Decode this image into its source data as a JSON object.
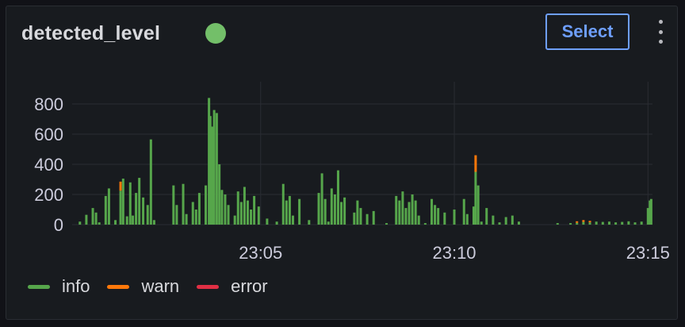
{
  "panel": {
    "title": "detected_level",
    "status_color": "#73bf69",
    "select_label": "Select",
    "menu_icon": "kebab-menu-icon"
  },
  "legend": [
    {
      "label": "info",
      "color": "#56a64b"
    },
    {
      "label": "warn",
      "color": "#ff780a"
    },
    {
      "label": "error",
      "color": "#e02f44"
    }
  ],
  "chart_data": {
    "type": "bar",
    "stacked": true,
    "title": "",
    "xlabel": "",
    "ylabel": "",
    "ylim": [
      0,
      840
    ],
    "yticks": [
      0,
      200,
      400,
      600,
      800
    ],
    "xlim": [
      "23:00:08",
      "23:15:07"
    ],
    "xticks": [
      "23:05",
      "23:10",
      "23:15"
    ],
    "grid": true,
    "legend_position": "bottom-left",
    "bars": [
      {
        "t": "23:00:20",
        "info": 20
      },
      {
        "t": "23:00:30",
        "info": 65
      },
      {
        "t": "23:00:40",
        "info": 110
      },
      {
        "t": "23:00:45",
        "info": 80
      },
      {
        "t": "23:00:50",
        "info": 15
      },
      {
        "t": "23:01:00",
        "info": 190
      },
      {
        "t": "23:01:05",
        "info": 240
      },
      {
        "t": "23:01:15",
        "info": 30
      },
      {
        "t": "23:01:23",
        "info": 225,
        "warn": 60
      },
      {
        "t": "23:01:27",
        "info": 305
      },
      {
        "t": "23:01:33",
        "info": 55
      },
      {
        "t": "23:01:38",
        "info": 280
      },
      {
        "t": "23:01:42",
        "info": 60
      },
      {
        "t": "23:01:47",
        "info": 210
      },
      {
        "t": "23:01:52",
        "info": 310
      },
      {
        "t": "23:01:58",
        "info": 180
      },
      {
        "t": "23:02:05",
        "info": 130
      },
      {
        "t": "23:02:10",
        "info": 565
      },
      {
        "t": "23:02:15",
        "info": 30
      },
      {
        "t": "23:02:45",
        "info": 260
      },
      {
        "t": "23:02:50",
        "info": 130
      },
      {
        "t": "23:03:00",
        "info": 270
      },
      {
        "t": "23:03:05",
        "info": 70
      },
      {
        "t": "23:03:15",
        "info": 150
      },
      {
        "t": "23:03:20",
        "info": 100
      },
      {
        "t": "23:03:25",
        "info": 210
      },
      {
        "t": "23:03:35",
        "info": 260
      },
      {
        "t": "23:03:40",
        "info": 840
      },
      {
        "t": "23:03:42",
        "info": 720
      },
      {
        "t": "23:03:45",
        "info": 650
      },
      {
        "t": "23:03:48",
        "info": 760
      },
      {
        "t": "23:03:52",
        "info": 740
      },
      {
        "t": "23:03:56",
        "info": 400
      },
      {
        "t": "23:04:00",
        "info": 230
      },
      {
        "t": "23:04:05",
        "info": 200
      },
      {
        "t": "23:04:10",
        "info": 130
      },
      {
        "t": "23:04:20",
        "info": 60
      },
      {
        "t": "23:04:25",
        "info": 220
      },
      {
        "t": "23:04:30",
        "info": 150
      },
      {
        "t": "23:04:35",
        "info": 250
      },
      {
        "t": "23:04:40",
        "info": 160
      },
      {
        "t": "23:04:45",
        "info": 100
      },
      {
        "t": "23:04:50",
        "info": 190
      },
      {
        "t": "23:04:57",
        "info": 120
      },
      {
        "t": "23:05:10",
        "info": 40
      },
      {
        "t": "23:05:25",
        "info": 20
      },
      {
        "t": "23:05:35",
        "info": 270
      },
      {
        "t": "23:05:40",
        "info": 160
      },
      {
        "t": "23:05:45",
        "info": 190
      },
      {
        "t": "23:05:50",
        "info": 60
      },
      {
        "t": "23:06:00",
        "info": 170
      },
      {
        "t": "23:06:15",
        "info": 30
      },
      {
        "t": "23:06:30",
        "info": 210
      },
      {
        "t": "23:06:35",
        "info": 340
      },
      {
        "t": "23:06:40",
        "info": 170
      },
      {
        "t": "23:06:45",
        "info": 20
      },
      {
        "t": "23:06:50",
        "info": 240
      },
      {
        "t": "23:06:55",
        "info": 200
      },
      {
        "t": "23:07:00",
        "info": 360
      },
      {
        "t": "23:07:05",
        "info": 150
      },
      {
        "t": "23:07:10",
        "info": 180
      },
      {
        "t": "23:07:25",
        "info": 80
      },
      {
        "t": "23:07:30",
        "info": 160
      },
      {
        "t": "23:07:35",
        "info": 110
      },
      {
        "t": "23:07:45",
        "info": 70
      },
      {
        "t": "23:07:55",
        "info": 90
      },
      {
        "t": "23:08:15",
        "info": 10
      },
      {
        "t": "23:08:30",
        "info": 190
      },
      {
        "t": "23:08:35",
        "info": 160
      },
      {
        "t": "23:08:40",
        "info": 220
      },
      {
        "t": "23:08:45",
        "info": 110
      },
      {
        "t": "23:08:50",
        "info": 150
      },
      {
        "t": "23:08:55",
        "info": 200
      },
      {
        "t": "23:09:00",
        "info": 160
      },
      {
        "t": "23:09:05",
        "info": 60
      },
      {
        "t": "23:09:15",
        "info": 10
      },
      {
        "t": "23:09:25",
        "info": 170
      },
      {
        "t": "23:09:30",
        "info": 130
      },
      {
        "t": "23:09:35",
        "info": 110
      },
      {
        "t": "23:09:45",
        "info": 80
      },
      {
        "t": "23:10:00",
        "info": 100
      },
      {
        "t": "23:10:15",
        "info": 170
      },
      {
        "t": "23:10:20",
        "info": 70
      },
      {
        "t": "23:10:30",
        "info": 120
      },
      {
        "t": "23:10:33",
        "info": 350,
        "warn": 110
      },
      {
        "t": "23:10:37",
        "info": 260
      },
      {
        "t": "23:10:42",
        "info": 20
      },
      {
        "t": "23:10:50",
        "info": 110
      },
      {
        "t": "23:11:00",
        "info": 60
      },
      {
        "t": "23:11:10",
        "info": 15
      },
      {
        "t": "23:11:20",
        "info": 50
      },
      {
        "t": "23:11:30",
        "info": 60
      },
      {
        "t": "23:11:40",
        "info": 20
      },
      {
        "t": "23:12:40",
        "info": 10
      },
      {
        "t": "23:13:00",
        "info": 10
      },
      {
        "t": "23:13:10",
        "info": 12,
        "warn": 10
      },
      {
        "t": "23:13:20",
        "info": 18,
        "warn": 12
      },
      {
        "t": "23:13:30",
        "info": 15,
        "warn": 10
      },
      {
        "t": "23:13:40",
        "info": 20
      },
      {
        "t": "23:13:50",
        "info": 18
      },
      {
        "t": "23:14:00",
        "info": 20
      },
      {
        "t": "23:14:10",
        "info": 15
      },
      {
        "t": "23:14:20",
        "info": 18
      },
      {
        "t": "23:14:30",
        "info": 22
      },
      {
        "t": "23:14:40",
        "info": 15
      },
      {
        "t": "23:14:50",
        "info": 20
      },
      {
        "t": "23:15:00",
        "info": 110
      },
      {
        "t": "23:15:03",
        "info": 160
      },
      {
        "t": "23:15:05",
        "info": 170
      }
    ]
  }
}
